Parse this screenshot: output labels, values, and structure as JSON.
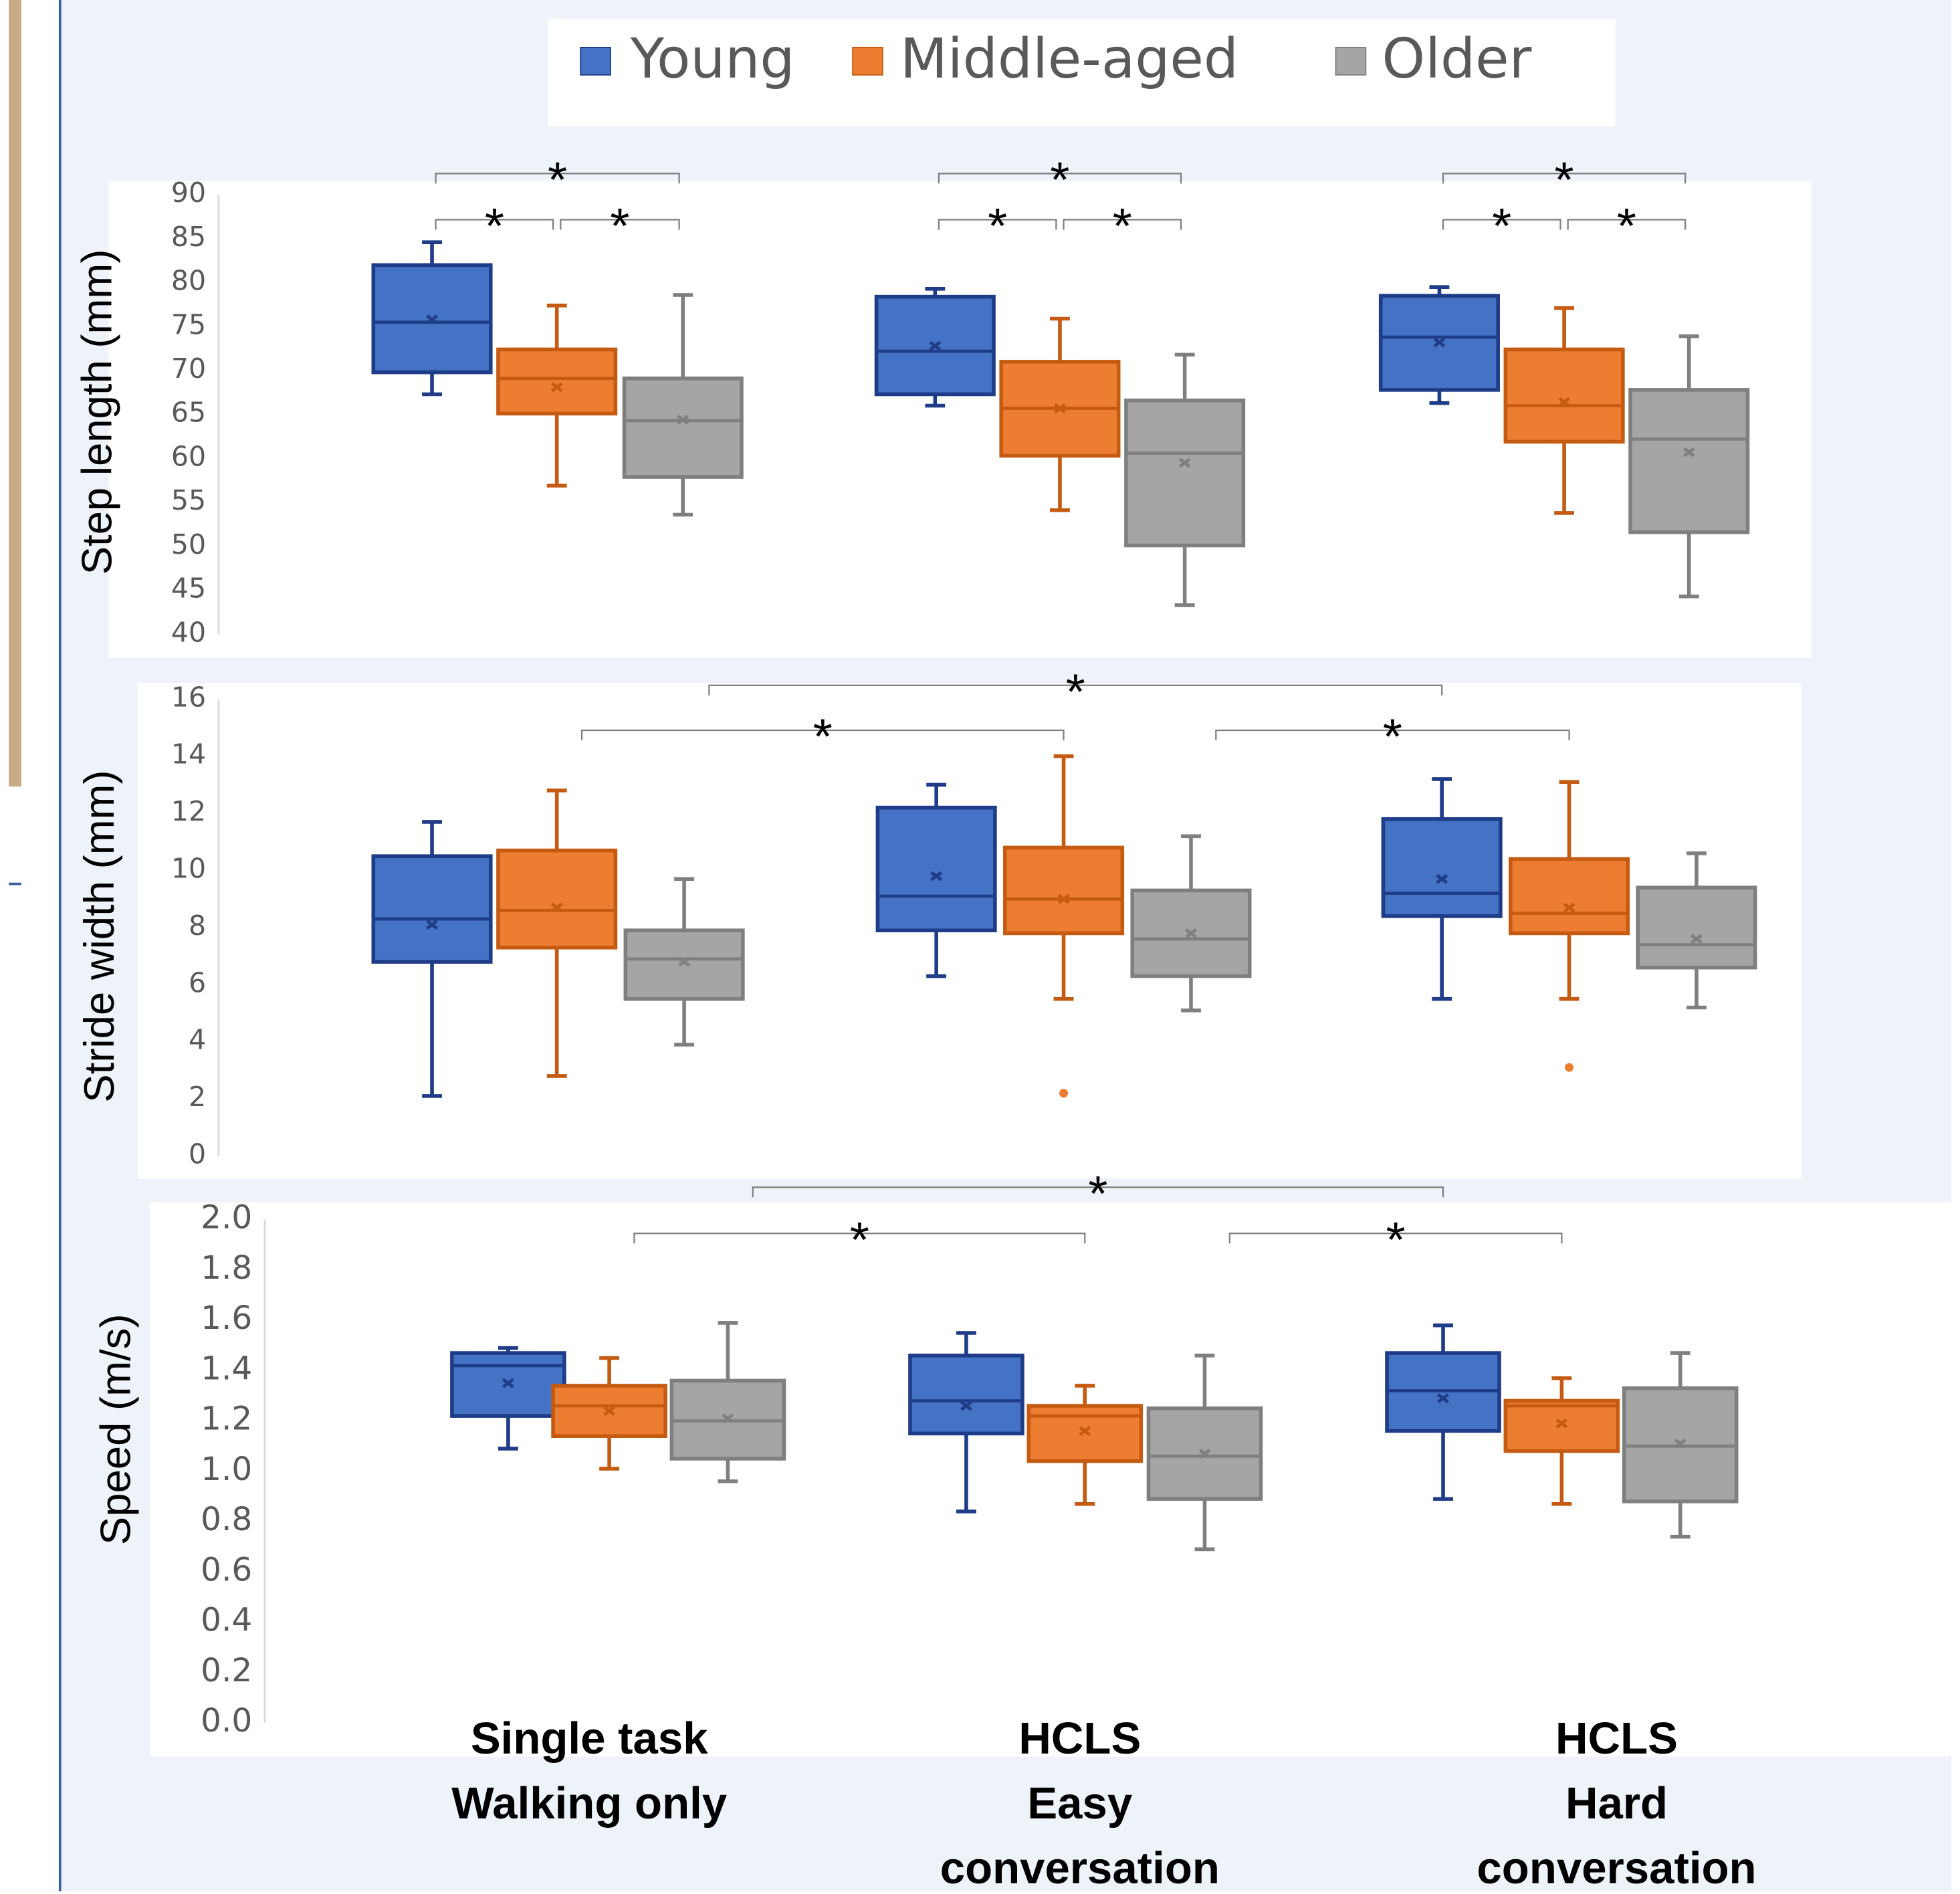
{
  "chart_data": [
    {
      "type": "box",
      "y_label": "Step length (mm)",
      "ylim": [
        40,
        90
      ],
      "yticks": [
        40,
        45,
        50,
        55,
        60,
        65,
        70,
        75,
        80,
        85,
        90
      ],
      "series": [
        {
          "name": "Young",
          "color": "#4472c4",
          "edge_color": "#1f3c88",
          "values": [
            {
              "min": 67.3,
              "q1": 69.8,
              "median": 75.5,
              "q3": 82.0,
              "max": 84.6,
              "mean": 75.8
            },
            {
              "min": 66.0,
              "q1": 67.3,
              "median": 72.2,
              "q3": 78.4,
              "max": 79.3,
              "mean": 72.8
            },
            {
              "min": 66.3,
              "q1": 67.8,
              "median": 73.8,
              "q3": 78.5,
              "max": 79.5,
              "mean": 73.2
            }
          ]
        },
        {
          "name": "Middle-aged",
          "color": "#ed7d31",
          "edge_color": "#c55a11",
          "values": [
            {
              "min": 56.9,
              "q1": 65.1,
              "median": 69.1,
              "q3": 72.4,
              "max": 77.4,
              "mean": 68.1
            },
            {
              "min": 54.1,
              "q1": 60.3,
              "median": 65.7,
              "q3": 71.0,
              "max": 75.9,
              "mean": 65.7
            },
            {
              "min": 53.8,
              "q1": 61.9,
              "median": 66.0,
              "q3": 72.4,
              "max": 77.1,
              "mean": 66.4
            }
          ]
        },
        {
          "name": "Older",
          "color": "#a5a5a5",
          "edge_color": "#7f7f7f",
          "values": [
            {
              "min": 53.6,
              "q1": 57.9,
              "median": 64.3,
              "q3": 69.1,
              "max": 78.6,
              "mean": 64.4
            },
            {
              "min": 43.3,
              "q1": 50.1,
              "median": 60.6,
              "q3": 66.6,
              "max": 71.8,
              "mean": 59.5
            },
            {
              "min": 44.3,
              "q1": 51.6,
              "median": 62.2,
              "q3": 67.8,
              "max": 73.9,
              "mean": 60.7
            }
          ]
        }
      ],
      "comparisons": [
        {
          "label": "*",
          "from": [
            0,
            0
          ],
          "to": [
            0,
            1
          ]
        },
        {
          "label": "*",
          "from": [
            0,
            1
          ],
          "to": [
            0,
            2
          ]
        },
        {
          "label": "*",
          "from": [
            0,
            0
          ],
          "to": [
            0,
            2
          ]
        },
        {
          "label": "*",
          "from": [
            1,
            0
          ],
          "to": [
            1,
            1
          ]
        },
        {
          "label": "*",
          "from": [
            1,
            1
          ],
          "to": [
            1,
            2
          ]
        },
        {
          "label": "*",
          "from": [
            1,
            0
          ],
          "to": [
            1,
            2
          ]
        },
        {
          "label": "*",
          "from": [
            2,
            0
          ],
          "to": [
            2,
            1
          ]
        },
        {
          "label": "*",
          "from": [
            2,
            1
          ],
          "to": [
            2,
            2
          ]
        },
        {
          "label": "*",
          "from": [
            2,
            0
          ],
          "to": [
            2,
            2
          ]
        }
      ]
    },
    {
      "type": "box",
      "y_label": "Stride width (mm)",
      "ylim": [
        0,
        16
      ],
      "yticks": [
        0,
        2,
        4,
        6,
        8,
        10,
        12,
        14,
        16
      ],
      "series": [
        {
          "color": "#4472c4",
          "edge_color": "#1f3c88",
          "values": [
            {
              "min": 2.1,
              "q1": 6.8,
              "median": 8.3,
              "q3": 10.5,
              "max": 11.7,
              "mean": 8.1
            },
            {
              "min": 6.3,
              "q1": 7.9,
              "median": 9.1,
              "q3": 12.2,
              "max": 13.0,
              "mean": 9.8
            },
            {
              "min": 5.5,
              "q1": 8.4,
              "median": 9.2,
              "q3": 11.8,
              "max": 13.2,
              "mean": 9.7
            }
          ]
        },
        {
          "color": "#ed7d31",
          "edge_color": "#c55a11",
          "values": [
            {
              "min": 2.8,
              "q1": 7.3,
              "median": 8.6,
              "q3": 10.7,
              "max": 12.8,
              "mean": 8.7
            },
            {
              "min": 5.5,
              "q1": 7.8,
              "median": 9.0,
              "q3": 10.8,
              "max": 14.0,
              "mean": 9.0,
              "outliers": [
                2.2
              ]
            },
            {
              "min": 5.5,
              "q1": 7.8,
              "median": 8.5,
              "q3": 10.4,
              "max": 13.1,
              "mean": 8.7,
              "outliers": [
                3.1
              ]
            }
          ]
        },
        {
          "color": "#a5a5a5",
          "edge_color": "#7f7f7f",
          "values": [
            {
              "min": 3.9,
              "q1": 5.5,
              "median": 6.9,
              "q3": 7.9,
              "max": 9.7,
              "mean": 6.8
            },
            {
              "min": 5.1,
              "q1": 6.3,
              "median": 7.6,
              "q3": 9.3,
              "max": 11.2,
              "mean": 7.8
            },
            {
              "min": 5.2,
              "q1": 6.6,
              "median": 7.4,
              "q3": 9.4,
              "max": 10.6,
              "mean": 7.6
            }
          ]
        }
      ],
      "comparisons": [
        {
          "label": "*",
          "from": [
            0,
            1
          ],
          "to": [
            1,
            1
          ]
        },
        {
          "label": "*",
          "from": [
            1,
            2
          ],
          "to": [
            2,
            1
          ]
        },
        {
          "label": "*",
          "from": [
            0,
            2
          ],
          "to": [
            2,
            0
          ]
        }
      ]
    },
    {
      "type": "box",
      "y_label": "Speed (m/s)",
      "ylim": [
        0,
        2
      ],
      "yticks": [
        {
          "value": 0,
          "label": "0.0"
        },
        0.2,
        0.4,
        0.6,
        0.8,
        {
          "value": 1,
          "label": "1.0"
        },
        1.2,
        1.4,
        1.6,
        1.8,
        {
          "value": 2,
          "label": "2.0"
        }
      ],
      "categories": [
        [
          "Single task",
          "Walking only"
        ],
        [
          "HCLS",
          "Easy",
          "conversation"
        ],
        [
          "HCLS",
          "Hard",
          "conversation"
        ]
      ],
      "series": [
        {
          "color": "#4472c4",
          "edge_color": "#1f3c88",
          "values": [
            {
              "min": 1.09,
              "q1": 1.22,
              "median": 1.42,
              "q3": 1.47,
              "max": 1.49,
              "mean": 1.35
            },
            {
              "min": 0.84,
              "q1": 1.15,
              "median": 1.28,
              "q3": 1.46,
              "max": 1.55,
              "mean": 1.26
            },
            {
              "min": 0.89,
              "q1": 1.16,
              "median": 1.32,
              "q3": 1.47,
              "max": 1.58,
              "mean": 1.29
            }
          ]
        },
        {
          "color": "#ed7d31",
          "edge_color": "#c55a11",
          "values": [
            {
              "min": 1.01,
              "q1": 1.14,
              "median": 1.26,
              "q3": 1.34,
              "max": 1.45,
              "mean": 1.24
            },
            {
              "min": 0.87,
              "q1": 1.04,
              "median": 1.22,
              "q3": 1.26,
              "max": 1.34,
              "mean": 1.16
            },
            {
              "min": 0.87,
              "q1": 1.08,
              "median": 1.26,
              "q3": 1.28,
              "max": 1.37,
              "mean": 1.19
            }
          ]
        },
        {
          "color": "#a5a5a5",
          "edge_color": "#7f7f7f",
          "values": [
            {
              "min": 0.96,
              "q1": 1.05,
              "median": 1.2,
              "q3": 1.36,
              "max": 1.59,
              "mean": 1.21
            },
            {
              "min": 0.69,
              "q1": 0.89,
              "median": 1.06,
              "q3": 1.25,
              "max": 1.46,
              "mean": 1.07
            },
            {
              "min": 0.74,
              "q1": 0.88,
              "median": 1.1,
              "q3": 1.33,
              "max": 1.47,
              "mean": 1.11
            }
          ]
        }
      ],
      "comparisons": [
        {
          "label": "*",
          "from": [
            0,
            1
          ],
          "to": [
            1,
            1
          ]
        },
        {
          "label": "*",
          "from": [
            1,
            2
          ],
          "to": [
            2,
            1
          ]
        },
        {
          "label": "*",
          "from": [
            0,
            2
          ],
          "to": [
            2,
            0
          ]
        }
      ]
    }
  ]
}
